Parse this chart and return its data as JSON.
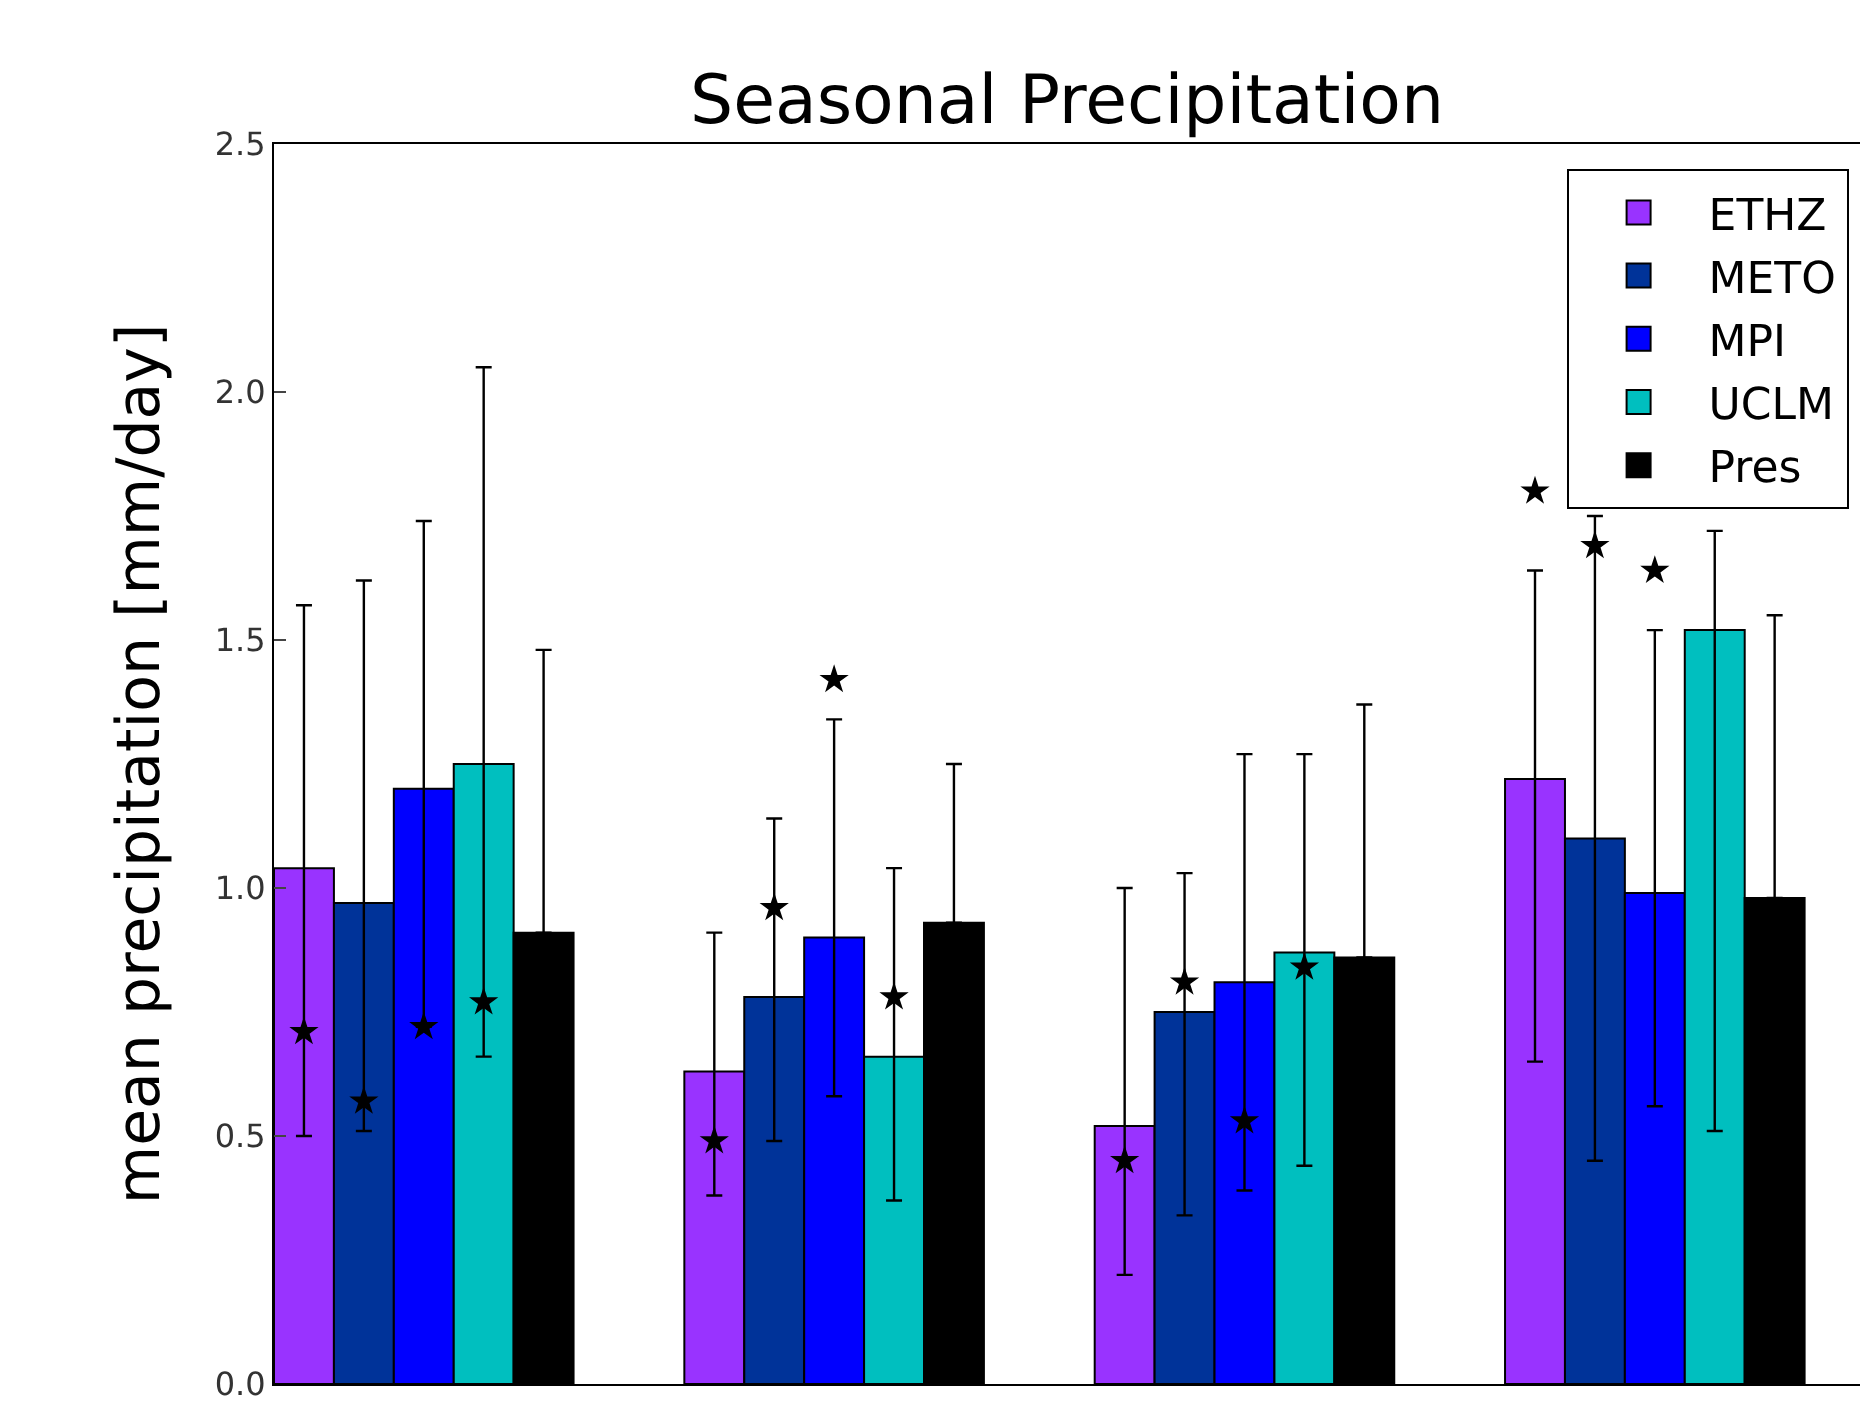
{
  "chart_data": {
    "type": "bar",
    "title": "Seasonal Precipitation",
    "ylabel": "mean precipitation [mm/day]",
    "categories": [
      null,
      null,
      null,
      null
    ],
    "ylim": [
      0,
      2.5
    ],
    "yticks": [
      {
        "value": 0,
        "label": "0.0"
      },
      0.5,
      {
        "value": 1,
        "label": "1.0"
      },
      1.5,
      {
        "value": 2,
        "label": "2.0"
      },
      2.5
    ],
    "grid": false,
    "legend": "top right",
    "tick_labels": "y",
    "series": [
      {
        "name": "ETHZ",
        "color": "#9933ff",
        "values": [
          1.04,
          0.63,
          0.52,
          1.22
        ],
        "errors": [
          [
            0.5,
            1.57
          ],
          [
            0.38,
            0.91
          ],
          [
            0.22,
            1.0
          ],
          [
            0.65,
            1.64
          ]
        ]
      },
      {
        "name": "METO",
        "color": "#003399",
        "values": [
          0.97,
          0.78,
          0.75,
          1.1
        ],
        "errors": [
          [
            0.51,
            1.62
          ],
          [
            0.49,
            1.14
          ],
          [
            0.34,
            1.03
          ],
          [
            0.45,
            1.75
          ]
        ]
      },
      {
        "name": "MPI",
        "color": "#0000ff",
        "values": [
          1.2,
          0.9,
          0.81,
          0.99
        ],
        "errors": [
          [
            0.72,
            1.74
          ],
          [
            0.58,
            1.34
          ],
          [
            0.39,
            1.27
          ],
          [
            0.56,
            1.52
          ]
        ]
      },
      {
        "name": "UCLM",
        "color": "#00bfbf",
        "values": [
          1.25,
          0.66,
          0.87,
          1.52
        ],
        "errors": [
          [
            0.66,
            2.05
          ],
          [
            0.37,
            1.04
          ],
          [
            0.44,
            1.27
          ],
          [
            0.51,
            1.72
          ]
        ]
      },
      {
        "name": "Pres",
        "color": "#000000",
        "values": [
          0.91,
          0.93,
          0.86,
          0.98
        ],
        "errors": [
          [
            0.91,
            1.48
          ],
          [
            0.93,
            1.25
          ],
          [
            0.86,
            1.37
          ],
          [
            0.98,
            1.55
          ]
        ]
      },
      {
        "type": "scatter",
        "marker": "star",
        "color": "#000000",
        "values": [
          0.71,
          0.49,
          0.45,
          1.8
        ]
      },
      {
        "type": "scatter",
        "marker": "star",
        "color": "#000000",
        "values": [
          0.57,
          0.96,
          0.81,
          1.69
        ]
      },
      {
        "type": "scatter",
        "marker": "star",
        "color": "#000000",
        "values": [
          0.72,
          1.42,
          0.53,
          1.64
        ]
      },
      {
        "type": "scatter",
        "marker": "star",
        "color": "#000000",
        "values": [
          0.77,
          0.78,
          0.84,
          null
        ]
      }
    ]
  }
}
